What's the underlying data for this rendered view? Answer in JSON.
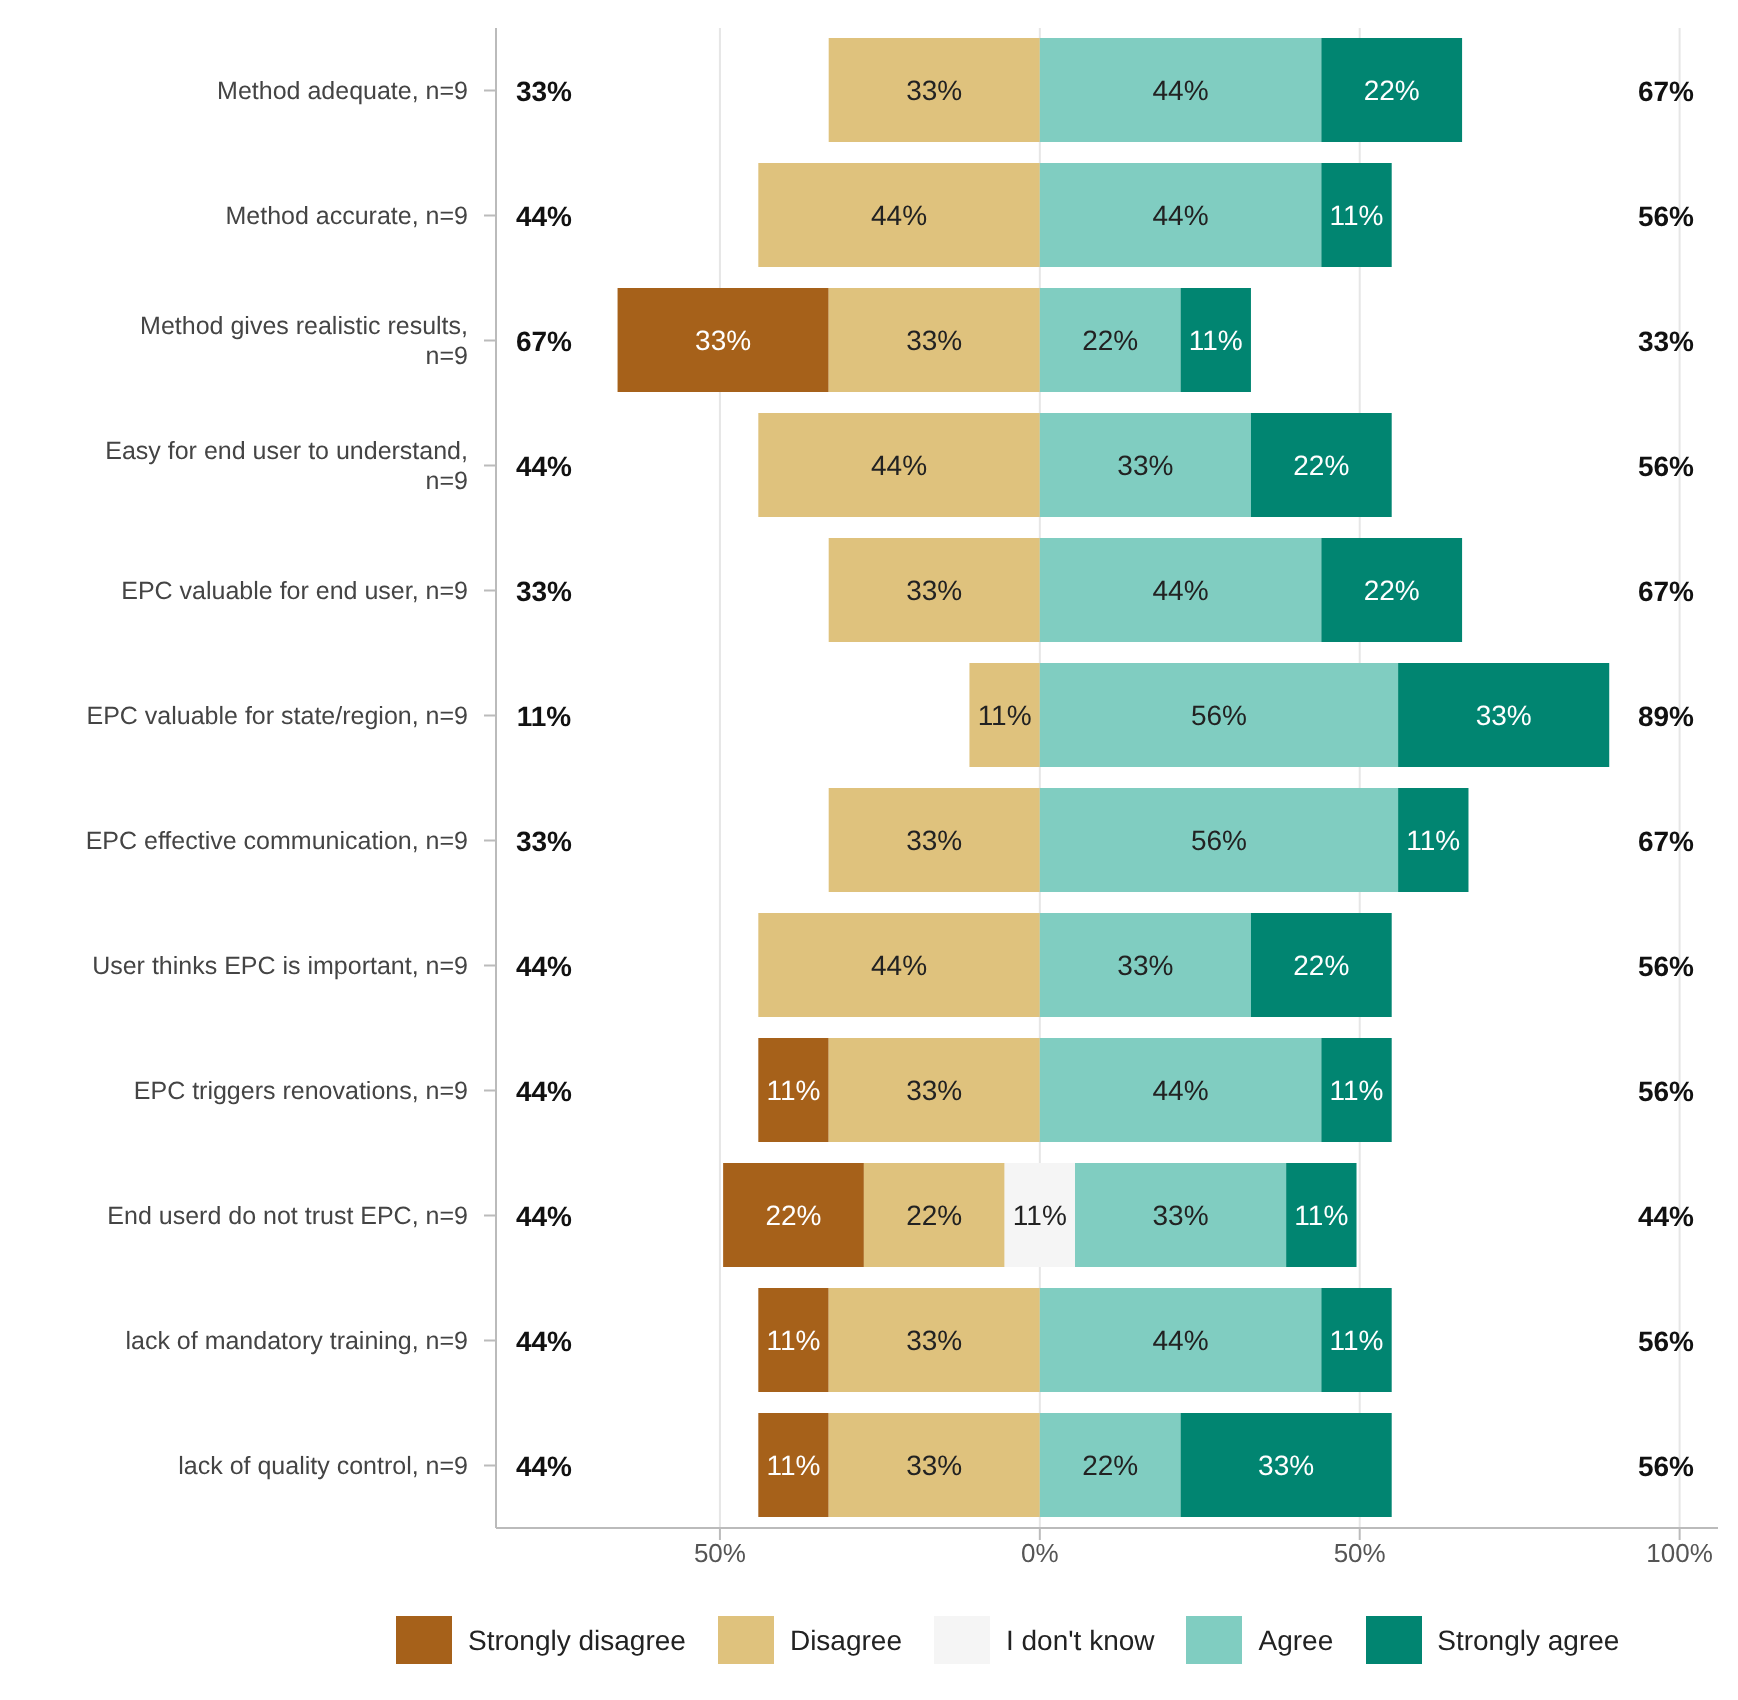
{
  "chart_data": {
    "type": "bar",
    "orientation": "horizontal",
    "categories": [
      "Method adequate, n=9",
      "Method accurate, n=9",
      "Method gives realistic results, n=9",
      "Easy for end user to understand, n=9",
      "EPC valuable for end user, n=9",
      "EPC valuable for state/region, n=9",
      "EPC effective communication, n=9",
      "User thinks EPC is important, n=9",
      "EPC triggers renovations, n=9",
      "End userd do not trust EPC, n=9",
      "lack of mandatory training, n=9",
      "lack of quality control, n=9"
    ],
    "series": [
      {
        "name": "Strongly disagree",
        "color": "#a6611a",
        "values": [
          null,
          null,
          33,
          null,
          null,
          null,
          null,
          null,
          11,
          22,
          11,
          11
        ],
        "base": [
          null,
          null,
          -66,
          null,
          null,
          null,
          null,
          null,
          -44,
          -49.5,
          -44,
          -44
        ],
        "value_labels": [
          null,
          null,
          "33%",
          null,
          null,
          null,
          null,
          null,
          "11%",
          "22%",
          "11%",
          "11%"
        ]
      },
      {
        "name": "Disagree",
        "color": "#dfc27d",
        "values": [
          33,
          44,
          33,
          44,
          33,
          11,
          33,
          44,
          33,
          22,
          33,
          33
        ],
        "base": [
          -33,
          -44,
          -33,
          -44,
          -33,
          -11,
          -33,
          -44,
          -33,
          -27.5,
          -33,
          -33
        ],
        "value_labels": [
          "33%",
          "44%",
          "33%",
          "44%",
          "33%",
          "11%",
          "33%",
          "44%",
          "33%",
          "22%",
          "33%",
          "33%"
        ]
      },
      {
        "name": "I don't know",
        "color": "#f5f5f5",
        "values": [
          null,
          null,
          null,
          null,
          null,
          null,
          null,
          null,
          null,
          11,
          null,
          null
        ],
        "base": [
          null,
          null,
          null,
          null,
          null,
          null,
          null,
          null,
          null,
          -5.5,
          null,
          null
        ],
        "value_labels": [
          null,
          null,
          null,
          null,
          null,
          null,
          null,
          null,
          null,
          "11%",
          null,
          null
        ]
      },
      {
        "name": "Agree",
        "color": "#80cdc1",
        "values": [
          44,
          44,
          22,
          33,
          44,
          56,
          56,
          33,
          44,
          33,
          44,
          22
        ],
        "base": [
          0,
          0,
          0,
          0,
          0,
          0,
          0,
          0,
          0,
          5.5,
          0,
          0
        ],
        "value_labels": [
          "44%",
          "44%",
          "22%",
          "33%",
          "44%",
          "56%",
          "56%",
          "33%",
          "44%",
          "33%",
          "44%",
          "22%"
        ]
      },
      {
        "name": "Strongly agree",
        "color": "#018571",
        "values": [
          22,
          11,
          11,
          22,
          22,
          33,
          11,
          22,
          11,
          11,
          11,
          33
        ],
        "base": [
          44,
          44,
          22,
          33,
          44,
          56,
          56,
          33,
          44,
          38.5,
          44,
          22
        ],
        "value_labels": [
          "22%",
          "11%",
          "11%",
          "22%",
          "22%",
          "33%",
          "11%",
          "22%",
          "11%",
          "11%",
          "11%",
          "33%"
        ]
      }
    ],
    "xlim": [
      -85,
      106
    ],
    "xticks": [
      {
        "value": -50,
        "label": "50%"
      },
      {
        "value": 0,
        "label": "0%"
      },
      {
        "value": 50,
        "label": "50%"
      },
      {
        "value": 100,
        "label": "100%"
      }
    ],
    "grid": "x",
    "legend": "bottom",
    "annotations": [
      "33%",
      "44%",
      "67%",
      "44%",
      "33%",
      "11%",
      "33%",
      "44%",
      "44%",
      "44%",
      "44%",
      "44%",
      "67%",
      "56%",
      "33%",
      "56%",
      "67%",
      "89%",
      "67%",
      "56%",
      "56%",
      "44%",
      "56%",
      "56%"
    ]
  }
}
